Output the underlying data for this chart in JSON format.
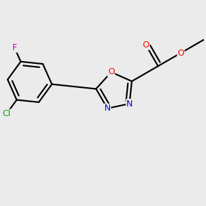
{
  "bg_color": "#ebebeb",
  "bond_color": "#000000",
  "bond_width": 1.6,
  "atom_colors": {
    "O": "#ff0000",
    "N": "#0000cc",
    "Cl": "#00aa00",
    "F": "#cc00cc",
    "C": "#000000"
  }
}
